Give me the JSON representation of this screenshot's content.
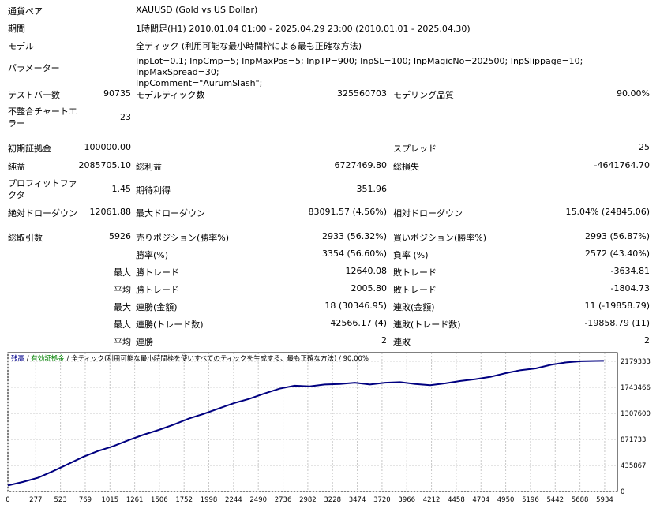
{
  "header": {
    "pair_label": "通貨ペア",
    "pair_value": "XAUUSD (Gold vs US Dollar)",
    "period_label": "期間",
    "period_value": "1時間足(H1) 2010.01.04 01:00 - 2025.04.29 23:00 (2010.01.01 - 2025.04.30)",
    "model_label": "モデル",
    "model_value": "全ティック (利用可能な最小時間枠による最も正確な方法)",
    "params_label": "パラメーター",
    "params_line1": "InpLot=0.1; InpCmp=5; InpMaxPos=5; InpTP=900; InpSL=100; InpMagicNo=202500; InpSlippage=10; InpMaxSpread=30;",
    "params_line2": "InpComment=\"AurumSlash\";"
  },
  "stats": {
    "bars_label": "テストバー数",
    "bars_value": "90735",
    "modelticks_label": "モデルティック数",
    "modelticks_value": "325560703",
    "quality_label": "モデリング品質",
    "quality_value": "90.00%",
    "mismatch_label": "不整合チャートエラー",
    "mismatch_value": "23",
    "deposit_label": "初期証拠金",
    "deposit_value": "100000.00",
    "spread_label": "スプレッド",
    "spread_value": "25",
    "netprofit_label": "純益",
    "netprofit_value": "2085705.10",
    "grossprofit_label": "総利益",
    "grossprofit_value": "6727469.80",
    "grossloss_label": "総損失",
    "grossloss_value": "-4641764.70",
    "pf_label": "プロフィットファクタ",
    "pf_value": "1.45",
    "expected_label": "期待利得",
    "expected_value": "351.96",
    "absdd_label": "絶対ドローダウン",
    "absdd_value": "12061.88",
    "maxdd_label": "最大ドローダウン",
    "maxdd_value": "83091.57 (4.56%)",
    "reldd_label": "相対ドローダウン",
    "reldd_value": "15.04% (24845.06)",
    "trades_label": "総取引数",
    "trades_value": "5926",
    "short_label": "売りポジション(勝率%)",
    "short_value": "2933 (56.32%)",
    "long_label": "買いポジション(勝率%)",
    "long_value": "2993 (56.87%)",
    "winrate_label": "勝率(%)",
    "winrate_value": "3354 (56.60%)",
    "lossrate_label": "負率 (%)",
    "lossrate_value": "2572 (43.40%)",
    "max_prefix": "最大",
    "avg_prefix": "平均",
    "maxwin_label": "勝トレード",
    "maxwin_value": "12640.08",
    "maxloss_label": "敗トレード",
    "maxloss_value": "-3634.81",
    "avgwin_label": "勝トレード",
    "avgwin_value": "2005.80",
    "avgloss_label": "敗トレード",
    "avgloss_value": "-1804.73",
    "maxconswin_label": "連勝(金額)",
    "maxconswin_value": "18 (30346.95)",
    "maxconsloss_label": "連敗(金額)",
    "maxconsloss_value": "11 (-19858.79)",
    "maxconsprofit_label": "連勝(トレード数)",
    "maxconsprofit_value": "42566.17 (4)",
    "maxconslosscount_label": "連敗(トレード数)",
    "maxconslosscount_value": "-19858.79 (11)",
    "avgconswin_label": "連勝",
    "avgconswin_value": "2",
    "avgconsloss_label": "連敗",
    "avgconsloss_value": "2"
  },
  "chart_data": {
    "type": "line",
    "legend": {
      "balance": "残高",
      "sep1": " / ",
      "equity": "有効証拠金",
      "sep2": " / ",
      "model": "全ティック(利用可能な最小時間枠を使いすべてのティックを生成する、最も正確な方法)",
      "sep3": " / ",
      "quality": "90.00%",
      "balance_color": "#00008b",
      "equity_color": "#008000"
    },
    "line_color": "#000080",
    "xlim": [
      0,
      6060
    ],
    "ylim": [
      0,
      2323500
    ],
    "x_ticks": [
      0,
      277,
      523,
      769,
      1015,
      1261,
      1506,
      1752,
      1998,
      2244,
      2490,
      2736,
      2982,
      3228,
      3474,
      3720,
      3966,
      4212,
      4458,
      4704,
      4950,
      5196,
      5442,
      5688,
      5934
    ],
    "y_ticks": [
      0,
      435867,
      871733,
      1307600,
      1743466,
      2179333
    ],
    "series": [
      {
        "x": [
          0,
          150,
          300,
          450,
          600,
          750,
          900,
          1050,
          1200,
          1350,
          1500,
          1650,
          1800,
          1950,
          2100,
          2250,
          2400,
          2550,
          2700,
          2850,
          3000,
          3150,
          3300,
          3450,
          3600,
          3750,
          3900,
          4050,
          4200,
          4350,
          4500,
          4650,
          4800,
          4950,
          5100,
          5250,
          5400,
          5550,
          5700,
          5850,
          5926
        ],
        "y": [
          100000,
          160000,
          230000,
          340000,
          460000,
          580000,
          680000,
          760000,
          860000,
          950000,
          1030000,
          1120000,
          1220000,
          1300000,
          1390000,
          1480000,
          1550000,
          1640000,
          1720000,
          1770000,
          1760000,
          1790000,
          1800000,
          1820000,
          1790000,
          1820000,
          1830000,
          1800000,
          1780000,
          1810000,
          1850000,
          1880000,
          1920000,
          1980000,
          2030000,
          2060000,
          2120000,
          2160000,
          2180000,
          2185000,
          2185705
        ]
      }
    ]
  }
}
